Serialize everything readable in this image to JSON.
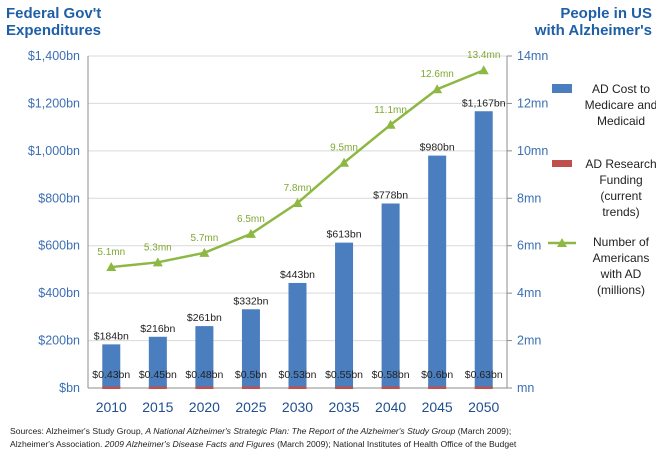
{
  "chart_data": {
    "type": "bar",
    "left_axis_title_lines": [
      "Federal Gov't",
      "Expenditures"
    ],
    "right_axis_title_lines": [
      "People in US",
      "with Alzheimer's"
    ],
    "categories": [
      "2010",
      "2015",
      "2020",
      "2025",
      "2030",
      "2035",
      "2040",
      "2045",
      "2050"
    ],
    "ylim_left": [
      0,
      1400
    ],
    "yticks_left": [
      "$bn",
      "$200bn",
      "$400bn",
      "$600bn",
      "$800bn",
      "$1,000bn",
      "$1,200bn",
      "$1,400bn"
    ],
    "ylim_right": [
      0,
      14
    ],
    "yticks_right": [
      "mn",
      "2mn",
      "4mn",
      "6mn",
      "8mn",
      "10mn",
      "12mn",
      "14mn"
    ],
    "grid": true,
    "legend_position": "right",
    "series": [
      {
        "legend_lines": [
          "AD Cost to",
          "Medicare and",
          "Medicaid"
        ],
        "type": "bar",
        "axis": "left",
        "color": "#4a7ebf",
        "values": [
          184,
          216,
          261,
          332,
          443,
          613,
          778,
          980,
          1167
        ],
        "labels": [
          "$184bn",
          "$216bn",
          "$261bn",
          "$332bn",
          "$443bn",
          "$613bn",
          "$778bn",
          "$980bn",
          "$1,167bn"
        ]
      },
      {
        "legend_lines": [
          "AD Research",
          "Funding",
          "(current",
          "trends)"
        ],
        "type": "bar",
        "axis": "left",
        "color": "#c0504d",
        "values": [
          0.43,
          0.45,
          0.48,
          0.5,
          0.53,
          0.55,
          0.58,
          0.6,
          0.63
        ],
        "labels": [
          "$0.43bn",
          "$0.45bn",
          "$0.48bn",
          "$0.5bn",
          "$0.53bn",
          "$0.55bn",
          "$0.58bn",
          "$0.6bn",
          "$0.63bn"
        ]
      },
      {
        "legend_lines": [
          "Number of",
          "Americans",
          "with AD",
          "(millions)"
        ],
        "type": "line",
        "axis": "right",
        "color": "#8db843",
        "values": [
          5.1,
          5.3,
          5.7,
          6.5,
          7.8,
          9.5,
          11.1,
          12.6,
          13.4
        ],
        "labels": [
          "5.1mn",
          "5.3mn",
          "5.7mn",
          "6.5mn",
          "7.8mn",
          "9.5mn",
          "11.1mn",
          "12.6mn",
          "13.4mn"
        ]
      }
    ]
  },
  "sources": {
    "part1": "Sources: Alzheimer's Study Group, ",
    "part2": "A National Alzheimer's Strategic Plan: The Report of the Alzheimer's Study Group",
    "part3": " (March 2009);",
    "part4": "Alzheimer's Association. ",
    "part5": "2009 Alzheimer's Disease Facts and Figures",
    "part6": " (March 2009); National Institutes of Health Office of the Budget"
  }
}
